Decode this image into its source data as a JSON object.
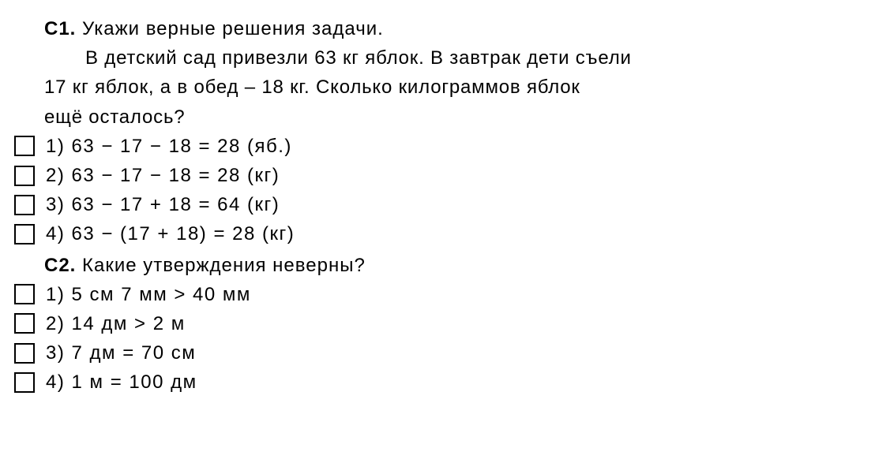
{
  "c1": {
    "label": "С1.",
    "prompt": "Укажи верные решения задачи.",
    "body_line1": "В детский сад привезли 63 кг яблок. В завтрак дети съели",
    "body_line2": "17 кг яблок, а в обед – 18 кг. Сколько килограммов яблок",
    "body_line3": "ещё осталось?",
    "options": [
      "1) 63 − 17 − 18 = 28 (яб.)",
      "2) 63 − 17 − 18 = 28 (кг)",
      "3) 63 − 17 + 18 = 64 (кг)",
      "4) 63 − (17 + 18) = 28 (кг)"
    ]
  },
  "c2": {
    "label": "С2.",
    "prompt": "Какие утверждения неверны?",
    "options": [
      "1) 5 см 7 мм > 40 мм",
      "2) 14 дм > 2 м",
      "3) 7 дм = 70 см",
      "4) 1 м = 100 дм"
    ]
  }
}
